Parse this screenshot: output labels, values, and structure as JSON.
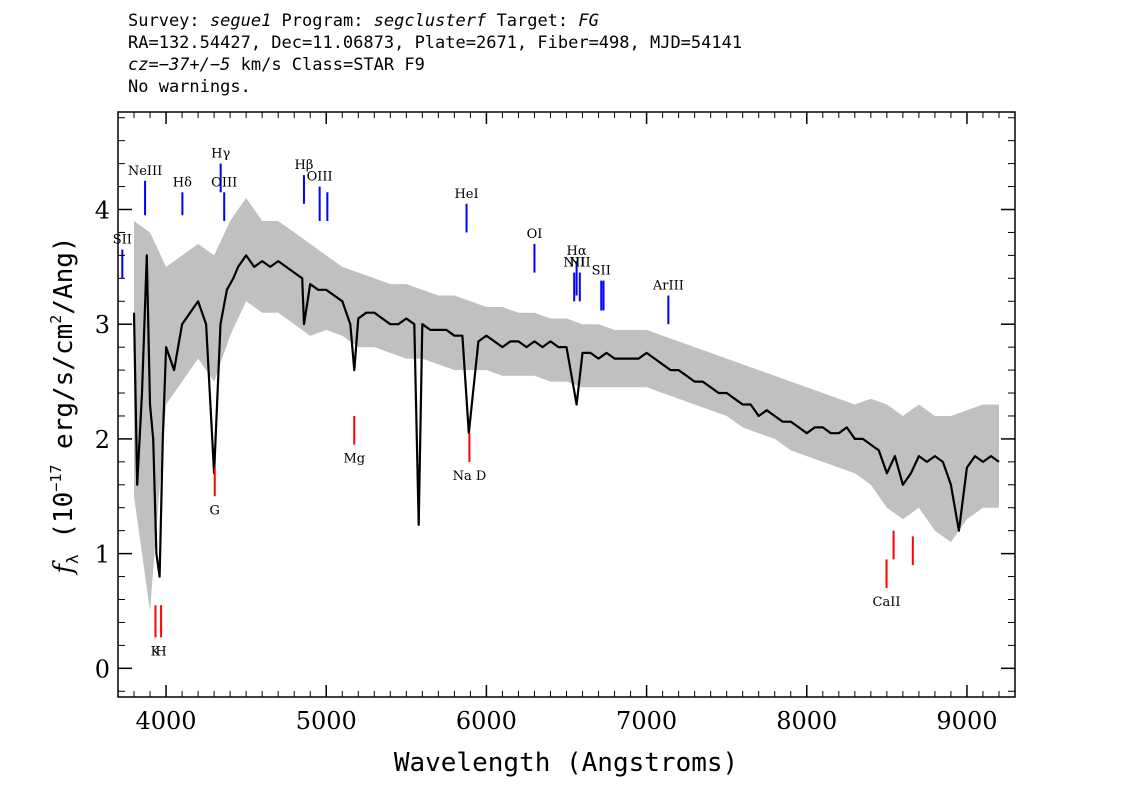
{
  "header": {
    "survey_label": "Survey: ",
    "survey": "segue1",
    "program_label": " Program: ",
    "program": "segclusterf",
    "target_label": " Target: ",
    "target": "FG",
    "line2": "RA=132.54427, Dec=11.06873, Plate=2671, Fiber=498, MJD=54141",
    "cz_label": "cz",
    "cz_value": "=−37+/−5",
    "cz_rest": " km/s Class=STAR F9",
    "line4": "No warnings."
  },
  "chart_data": {
    "type": "line",
    "xlabel": "Wavelength (Angstroms)",
    "ylabel_prefix": "f",
    "ylabel_sub": "λ",
    "ylabel_body": " (10",
    "ylabel_exp": "−17",
    "ylabel_unit": " erg/s/cm",
    "ylabel_exp2": "2",
    "ylabel_end": "/Ang)",
    "xlim": [
      3700,
      9300
    ],
    "ylim": [
      -0.25,
      4.85
    ],
    "x_ticks": [
      4000,
      5000,
      6000,
      7000,
      8000,
      9000
    ],
    "x_tick_labels": [
      "4000",
      "5000",
      "6000",
      "7000",
      "8000",
      "9000"
    ],
    "y_ticks": [
      0,
      1,
      2,
      3,
      4
    ],
    "y_tick_labels": [
      "0",
      "1",
      "2",
      "3",
      "4"
    ],
    "series": [
      {
        "role": "flux",
        "color": "#000000",
        "x": [
          3800,
          3820,
          3850,
          3880,
          3900,
          3920,
          3940,
          3960,
          3980,
          4000,
          4050,
          4100,
          4150,
          4200,
          4250,
          4300,
          4340,
          4380,
          4420,
          4450,
          4500,
          4550,
          4600,
          4650,
          4700,
          4750,
          4800,
          4850,
          4861,
          4900,
          4950,
          5000,
          5050,
          5100,
          5150,
          5175,
          5200,
          5250,
          5300,
          5350,
          5400,
          5450,
          5500,
          5550,
          5577,
          5600,
          5650,
          5700,
          5750,
          5800,
          5850,
          5890,
          5950,
          6000,
          6050,
          6100,
          6150,
          6200,
          6250,
          6300,
          6350,
          6400,
          6450,
          6500,
          6563,
          6600,
          6650,
          6700,
          6750,
          6800,
          6850,
          6900,
          6950,
          7000,
          7050,
          7100,
          7150,
          7200,
          7250,
          7300,
          7350,
          7400,
          7450,
          7500,
          7550,
          7600,
          7650,
          7700,
          7750,
          7800,
          7850,
          7900,
          7950,
          8000,
          8050,
          8100,
          8150,
          8200,
          8250,
          8300,
          8350,
          8400,
          8450,
          8500,
          8550,
          8600,
          8650,
          8700,
          8750,
          8800,
          8850,
          8900,
          8950,
          9000,
          9050,
          9100,
          9150,
          9200
        ],
        "y": [
          3.1,
          1.6,
          2.4,
          3.6,
          2.3,
          2.0,
          1.0,
          0.8,
          2.0,
          2.8,
          2.6,
          3.0,
          3.1,
          3.2,
          3.0,
          1.7,
          3.0,
          3.3,
          3.4,
          3.5,
          3.6,
          3.5,
          3.55,
          3.5,
          3.55,
          3.5,
          3.45,
          3.4,
          3.0,
          3.35,
          3.3,
          3.3,
          3.25,
          3.2,
          3.0,
          2.6,
          3.05,
          3.1,
          3.1,
          3.05,
          3.0,
          3.0,
          3.05,
          3.0,
          1.25,
          3.0,
          2.95,
          2.95,
          2.95,
          2.9,
          2.9,
          2.05,
          2.85,
          2.9,
          2.85,
          2.8,
          2.85,
          2.85,
          2.8,
          2.85,
          2.8,
          2.85,
          2.8,
          2.8,
          2.3,
          2.75,
          2.75,
          2.7,
          2.75,
          2.7,
          2.7,
          2.7,
          2.7,
          2.75,
          2.7,
          2.65,
          2.6,
          2.6,
          2.55,
          2.5,
          2.5,
          2.45,
          2.4,
          2.4,
          2.35,
          2.3,
          2.3,
          2.2,
          2.25,
          2.2,
          2.15,
          2.15,
          2.1,
          2.05,
          2.1,
          2.1,
          2.05,
          2.05,
          2.1,
          2.0,
          2.0,
          1.95,
          1.9,
          1.7,
          1.85,
          1.6,
          1.7,
          1.85,
          1.8,
          1.85,
          1.8,
          1.6,
          1.2,
          1.75,
          1.85,
          1.8,
          1.85,
          1.8
        ]
      },
      {
        "role": "error-band",
        "color": "#c0c0c0",
        "x": [
          3800,
          3900,
          4000,
          4100,
          4200,
          4300,
          4400,
          4500,
          4600,
          4700,
          4800,
          4900,
          5000,
          5100,
          5200,
          5300,
          5400,
          5500,
          5600,
          5700,
          5800,
          5900,
          6000,
          6100,
          6200,
          6300,
          6400,
          6500,
          6600,
          6700,
          6800,
          6900,
          7000,
          7100,
          7200,
          7300,
          7400,
          7500,
          7600,
          7700,
          7800,
          7900,
          8000,
          8100,
          8200,
          8300,
          8400,
          8500,
          8600,
          8700,
          8800,
          8900,
          9000,
          9100,
          9200
        ],
        "upper": [
          3.9,
          3.8,
          3.5,
          3.6,
          3.7,
          3.6,
          3.9,
          4.1,
          3.9,
          3.9,
          3.8,
          3.7,
          3.6,
          3.5,
          3.45,
          3.4,
          3.35,
          3.35,
          3.3,
          3.25,
          3.25,
          3.2,
          3.15,
          3.15,
          3.1,
          3.1,
          3.05,
          3.05,
          3.0,
          3.0,
          2.95,
          2.95,
          2.95,
          2.9,
          2.85,
          2.8,
          2.75,
          2.7,
          2.65,
          2.6,
          2.55,
          2.5,
          2.45,
          2.4,
          2.35,
          2.3,
          2.35,
          2.3,
          2.2,
          2.3,
          2.2,
          2.2,
          2.25,
          2.3,
          2.3
        ],
        "lower": [
          1.5,
          0.5,
          2.3,
          2.5,
          2.7,
          2.5,
          2.9,
          3.2,
          3.1,
          3.1,
          3.0,
          2.9,
          2.95,
          2.9,
          2.8,
          2.8,
          2.75,
          2.7,
          2.7,
          2.65,
          2.6,
          2.6,
          2.6,
          2.55,
          2.55,
          2.55,
          2.5,
          2.5,
          2.45,
          2.45,
          2.45,
          2.45,
          2.45,
          2.4,
          2.35,
          2.3,
          2.25,
          2.2,
          2.1,
          2.05,
          2.0,
          1.9,
          1.85,
          1.8,
          1.75,
          1.7,
          1.6,
          1.4,
          1.3,
          1.4,
          1.2,
          1.1,
          1.3,
          1.4,
          1.4
        ]
      }
    ],
    "emission_lines": [
      {
        "label": "SII",
        "x": 3727,
        "y0": 3.4,
        "y1": 3.65,
        "color": "#0000ff"
      },
      {
        "label": "NeIII",
        "x": 3869,
        "y0": 3.95,
        "y1": 4.25,
        "color": "#0000ff"
      },
      {
        "label": "Hδ",
        "x": 4102,
        "y0": 3.95,
        "y1": 4.15,
        "color": "#0000ff"
      },
      {
        "label": "Hγ",
        "x": 4341,
        "y0": 4.15,
        "y1": 4.4,
        "color": "#0000ff"
      },
      {
        "label": "OIII",
        "x": 4363,
        "y0": 3.9,
        "y1": 4.15,
        "color": "#0000ff"
      },
      {
        "label": "Hβ",
        "x": 4861,
        "y0": 4.05,
        "y1": 4.3,
        "color": "#0000ff"
      },
      {
        "label": "OIII",
        "x": 4959,
        "y0": 3.9,
        "y1": 4.2,
        "color": "#0000ff"
      },
      {
        "label": "",
        "x": 5007,
        "y0": 3.9,
        "y1": 4.15,
        "color": "#0000ff"
      },
      {
        "label": "HeI",
        "x": 5876,
        "y0": 3.8,
        "y1": 4.05,
        "color": "#0000ff"
      },
      {
        "label": "OI",
        "x": 6300,
        "y0": 3.45,
        "y1": 3.7,
        "color": "#0000ff"
      },
      {
        "label": "NII",
        "x": 6548,
        "y0": 3.2,
        "y1": 3.45,
        "color": "#0000ff"
      },
      {
        "label": "Hα",
        "x": 6563,
        "y0": 3.25,
        "y1": 3.55,
        "color": "#0000ff"
      },
      {
        "label": "NII",
        "x": 6583,
        "y0": 3.2,
        "y1": 3.45,
        "color": "#0000ff"
      },
      {
        "label": "SII",
        "x": 6717,
        "y0": 3.12,
        "y1": 3.38,
        "color": "#0000ff"
      },
      {
        "label": "",
        "x": 6731,
        "y0": 3.12,
        "y1": 3.38,
        "color": "#0000ff"
      },
      {
        "label": "ArIII",
        "x": 7136,
        "y0": 3.0,
        "y1": 3.25,
        "color": "#0000ff"
      }
    ],
    "absorption_lines": [
      {
        "label": "K",
        "x": 3934,
        "y0": 0.55,
        "y1": 0.27,
        "color": "#ff0000"
      },
      {
        "label": "H",
        "x": 3969,
        "y0": 0.55,
        "y1": 0.27,
        "color": "#ff0000"
      },
      {
        "label": "G",
        "x": 4304,
        "y0": 1.75,
        "y1": 1.5,
        "color": "#ff0000"
      },
      {
        "label": "Mg",
        "x": 5175,
        "y0": 2.2,
        "y1": 1.95,
        "color": "#ff0000"
      },
      {
        "label": "Na",
        "x": 5894,
        "y0": 2.05,
        "y1": 1.8,
        "color": "#ff0000"
      },
      {
        "label": "D",
        "x": 5894,
        "y0": 2.05,
        "y1": 1.8,
        "color": "#ff0000",
        "hidden_mark": true
      },
      {
        "label": "CaII",
        "x": 8498,
        "y0": 0.95,
        "y1": 0.7,
        "color": "#ff0000"
      },
      {
        "label": "",
        "x": 8542,
        "y0": 1.2,
        "y1": 0.95,
        "color": "#ff0000"
      },
      {
        "label": "",
        "x": 8662,
        "y0": 1.15,
        "y1": 0.9,
        "color": "#ff0000"
      }
    ]
  }
}
